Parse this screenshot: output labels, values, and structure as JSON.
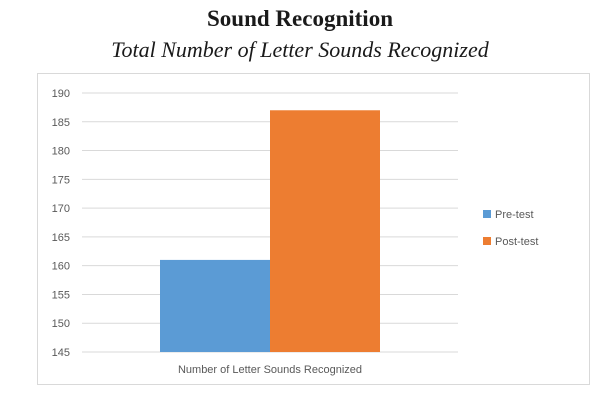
{
  "chart_data": {
    "type": "bar",
    "title": "Sound Recognition",
    "subtitle": "Total Number of Letter Sounds Recognized",
    "categories": [
      "Number of Letter Sounds Recognized"
    ],
    "series": [
      {
        "name": "Pre-test",
        "values": [
          161
        ],
        "color": "#5b9bd5"
      },
      {
        "name": "Post-test",
        "values": [
          187
        ],
        "color": "#ed7d31"
      }
    ],
    "ylim": [
      145,
      190
    ],
    "yticks": [
      145,
      150,
      155,
      160,
      165,
      170,
      175,
      180,
      185,
      190
    ],
    "grid": true,
    "legend_position": "right"
  }
}
